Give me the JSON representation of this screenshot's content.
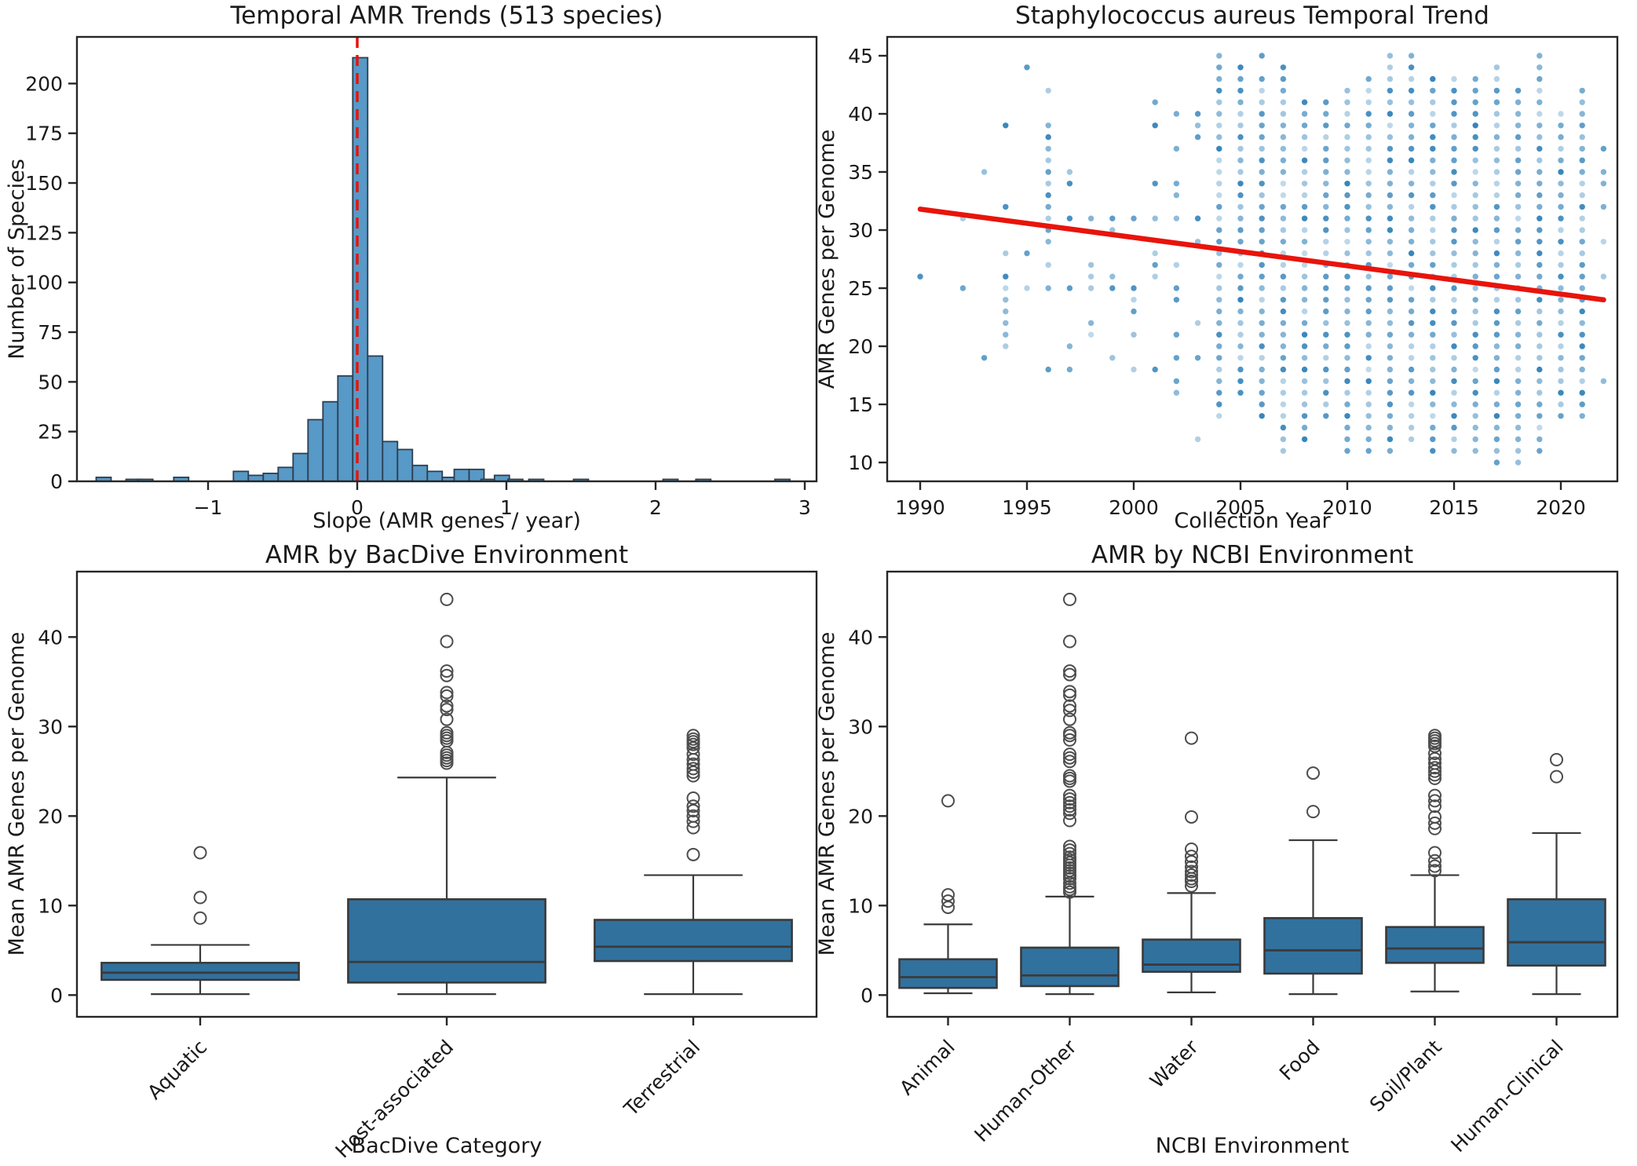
{
  "figure": {
    "background": "#ffffff",
    "text_color": "#1a1a1a",
    "spine_color": "#262626",
    "accent_red": "#e8140b",
    "series_blue": "#1f77b4",
    "hist_fill": "#5799c7",
    "hist_edge": "#2d3e50",
    "box_fill": "#31719e",
    "box_edge": "#3a3a3a"
  },
  "chart_data": [
    {
      "id": "hist",
      "type": "bar",
      "title": "Temporal AMR Trends (513 species)",
      "xlabel": "Slope (AMR genes / year)",
      "ylabel": "Number of Species",
      "xlim": [
        -1.88,
        3.08
      ],
      "ylim": [
        0,
        223
      ],
      "xticks": [
        -1,
        0,
        1,
        2,
        3
      ],
      "yticks": [
        0,
        25,
        50,
        75,
        100,
        125,
        150,
        175,
        200
      ],
      "grid": false,
      "bin_width": 0.1,
      "bars": [
        {
          "x": -1.7,
          "n": 2
        },
        {
          "x": -1.5,
          "n": 1
        },
        {
          "x": -1.42,
          "n": 1
        },
        {
          "x": -1.18,
          "n": 2
        },
        {
          "x": -0.78,
          "n": 5
        },
        {
          "x": -0.68,
          "n": 3
        },
        {
          "x": -0.58,
          "n": 4
        },
        {
          "x": -0.48,
          "n": 7
        },
        {
          "x": -0.38,
          "n": 14
        },
        {
          "x": -0.28,
          "n": 31
        },
        {
          "x": -0.18,
          "n": 40
        },
        {
          "x": -0.08,
          "n": 53
        },
        {
          "x": 0.02,
          "n": 213
        },
        {
          "x": 0.12,
          "n": 63
        },
        {
          "x": 0.22,
          "n": 20
        },
        {
          "x": 0.32,
          "n": 16
        },
        {
          "x": 0.42,
          "n": 8
        },
        {
          "x": 0.52,
          "n": 5
        },
        {
          "x": 0.62,
          "n": 2
        },
        {
          "x": 0.7,
          "n": 6
        },
        {
          "x": 0.8,
          "n": 6
        },
        {
          "x": 0.88,
          "n": 1
        },
        {
          "x": 0.97,
          "n": 3
        },
        {
          "x": 1.06,
          "n": 1
        },
        {
          "x": 1.2,
          "n": 1
        },
        {
          "x": 1.5,
          "n": 1
        },
        {
          "x": 2.1,
          "n": 1
        },
        {
          "x": 2.32,
          "n": 1
        },
        {
          "x": 2.85,
          "n": 1
        }
      ],
      "vline": {
        "x": 0,
        "color": "#e8140b",
        "style": "dashed"
      }
    },
    {
      "id": "scatter",
      "type": "scatter",
      "title": "Staphylococcus aureus Temporal Trend",
      "xlabel": "Collection Year",
      "ylabel": "AMR Genes per Genome",
      "xlim": [
        1988.5,
        2022.6
      ],
      "ylim": [
        8.4,
        46.6
      ],
      "xticks": [
        1990,
        1995,
        2000,
        2005,
        2010,
        2015,
        2020
      ],
      "yticks": [
        10,
        15,
        20,
        25,
        30,
        35,
        40,
        45
      ],
      "grid": false,
      "trend_line": {
        "x": [
          1990,
          2022
        ],
        "y": [
          31.8,
          24.0
        ],
        "color": "#e8140b"
      },
      "points": [
        {
          "year": 1990,
          "values": [
            26
          ]
        },
        {
          "year": 1992,
          "values": [
            25,
            31
          ]
        },
        {
          "year": 1993,
          "values": [
            19,
            35
          ]
        },
        {
          "year": 1994,
          "values": [
            20,
            21,
            22,
            23,
            24,
            25,
            26,
            28,
            32,
            39
          ]
        },
        {
          "year": 1995,
          "values": [
            25,
            28,
            44
          ]
        },
        {
          "year": 1996,
          "values": [
            18,
            25,
            27,
            29,
            30,
            31,
            32,
            33,
            34,
            35,
            36,
            37,
            38,
            39,
            42
          ]
        },
        {
          "year": 1997,
          "values": [
            18,
            20,
            25,
            31,
            34,
            35
          ]
        },
        {
          "year": 1998,
          "values": [
            21,
            22,
            25,
            26,
            27,
            31
          ]
        },
        {
          "year": 1999,
          "values": [
            19,
            25,
            26,
            30,
            31
          ]
        },
        {
          "year": 2000,
          "values": [
            18,
            21,
            23,
            24,
            25,
            31
          ]
        },
        {
          "year": 2001,
          "values": [
            18,
            26,
            27,
            28,
            31,
            34,
            39,
            41
          ]
        },
        {
          "year": 2002,
          "values": [
            16,
            17,
            19,
            21,
            24,
            25,
            27,
            31,
            33,
            34,
            37,
            40
          ]
        },
        {
          "year": 2003,
          "values": [
            12,
            19,
            22,
            29,
            31,
            38,
            39,
            40
          ]
        },
        {
          "year": 2004,
          "range": [
            14,
            45
          ]
        },
        {
          "year": 2005,
          "range": [
            16,
            44
          ]
        },
        {
          "year": 2006,
          "range": [
            14,
            43
          ],
          "values": [
            45
          ]
        },
        {
          "year": 2007,
          "range": [
            11,
            44
          ]
        },
        {
          "year": 2008,
          "range": [
            12,
            41
          ]
        },
        {
          "year": 2009,
          "range": [
            14,
            41
          ]
        },
        {
          "year": 2010,
          "range": [
            11,
            42
          ]
        },
        {
          "year": 2011,
          "range": [
            11,
            43
          ]
        },
        {
          "year": 2012,
          "range": [
            11,
            45
          ]
        },
        {
          "year": 2013,
          "range": [
            12,
            45
          ]
        },
        {
          "year": 2014,
          "range": [
            11,
            43
          ]
        },
        {
          "year": 2015,
          "range": [
            11,
            43
          ]
        },
        {
          "year": 2016,
          "range": [
            11,
            43
          ]
        },
        {
          "year": 2017,
          "range": [
            10,
            44
          ]
        },
        {
          "year": 2018,
          "range": [
            10,
            42
          ]
        },
        {
          "year": 2019,
          "range": [
            11,
            45
          ]
        },
        {
          "year": 2020,
          "range": [
            14,
            40
          ]
        },
        {
          "year": 2021,
          "range": [
            14,
            42
          ]
        },
        {
          "year": 2022,
          "values": [
            17,
            24,
            26,
            29,
            32,
            34,
            35,
            37
          ]
        }
      ]
    },
    {
      "id": "box1",
      "type": "box",
      "title": "AMR by BacDive Environment",
      "xlabel": "BacDive Category",
      "ylabel": "Mean AMR Genes per Genome",
      "ylim": [
        -2.5,
        47.3
      ],
      "yticks": [
        0,
        10,
        20,
        30,
        40
      ],
      "grid": false,
      "categories": [
        {
          "label": "Aquatic",
          "lo": 0.1,
          "q1": 1.7,
          "med": 2.5,
          "q3": 3.6,
          "hi": 5.6,
          "outliers": [
            8.6,
            10.9,
            15.9
          ]
        },
        {
          "label": "Host-associated",
          "lo": 0.1,
          "q1": 1.4,
          "med": 3.7,
          "q3": 10.7,
          "hi": 24.3,
          "outliers": [
            25.9,
            26.2,
            26.5,
            26.8,
            27.1,
            28.4,
            28.7,
            29.0,
            29.3,
            30.8,
            31.9,
            32.3,
            33.4,
            33.8,
            35.7,
            36.2,
            39.5,
            44.2
          ]
        },
        {
          "label": "Terrestrial",
          "lo": 0.1,
          "q1": 3.8,
          "med": 5.4,
          "q3": 8.4,
          "hi": 13.4,
          "outliers": [
            15.7,
            18.7,
            19.4,
            20.0,
            20.6,
            21.1,
            22.0,
            24.5,
            24.9,
            25.3,
            25.8,
            26.3,
            26.9,
            27.6,
            28.0,
            28.3,
            28.6,
            29.0
          ]
        }
      ]
    },
    {
      "id": "box2",
      "type": "box",
      "title": "AMR by NCBI Environment",
      "xlabel": "NCBI Environment",
      "ylabel": "Mean AMR Genes per Genome",
      "ylim": [
        -2.5,
        47.3
      ],
      "yticks": [
        0,
        10,
        20,
        30,
        40
      ],
      "grid": false,
      "categories": [
        {
          "label": "Animal",
          "lo": 0.2,
          "q1": 0.8,
          "med": 2.0,
          "q3": 4.0,
          "hi": 7.9,
          "outliers": [
            9.8,
            10.5,
            11.2,
            21.7
          ]
        },
        {
          "label": "Human-Other",
          "lo": 0.1,
          "q1": 1.0,
          "med": 2.2,
          "q3": 5.3,
          "hi": 11.0,
          "outliers": [
            11.5,
            11.8,
            12.1,
            12.5,
            13.0,
            13.3,
            13.6,
            13.9,
            14.2,
            14.5,
            14.8,
            15.1,
            15.4,
            15.8,
            16.2,
            16.6,
            19.5,
            20.3,
            20.7,
            21.1,
            21.5,
            21.9,
            22.3,
            23.9,
            24.2,
            24.5,
            26.1,
            26.5,
            26.9,
            28.5,
            29.0,
            29.3,
            30.8,
            31.8,
            32.3,
            33.5,
            33.9,
            35.8,
            36.2,
            39.5,
            44.2
          ]
        },
        {
          "label": "Water",
          "lo": 0.3,
          "q1": 2.6,
          "med": 3.4,
          "q3": 6.2,
          "hi": 11.4,
          "outliers": [
            12.2,
            12.7,
            13.0,
            13.4,
            13.8,
            14.3,
            14.9,
            15.5,
            16.3,
            19.9,
            28.7
          ]
        },
        {
          "label": "Food",
          "lo": 0.1,
          "q1": 2.4,
          "med": 5.0,
          "q3": 8.6,
          "hi": 17.3,
          "outliers": [
            20.5,
            24.8
          ]
        },
        {
          "label": "Soil/Plant",
          "lo": 0.4,
          "q1": 3.6,
          "med": 5.2,
          "q3": 7.6,
          "hi": 13.4,
          "outliers": [
            13.9,
            14.4,
            15.0,
            15.9,
            18.6,
            19.2,
            19.9,
            21.1,
            21.7,
            22.3,
            24.2,
            24.6,
            25.0,
            25.4,
            25.9,
            26.4,
            27.0,
            27.8,
            28.1,
            28.4,
            28.7,
            29.0
          ]
        },
        {
          "label": "Human-Clinical",
          "lo": 0.1,
          "q1": 3.3,
          "med": 5.9,
          "q3": 10.7,
          "hi": 18.1,
          "outliers": [
            24.4,
            26.3
          ]
        }
      ]
    }
  ]
}
